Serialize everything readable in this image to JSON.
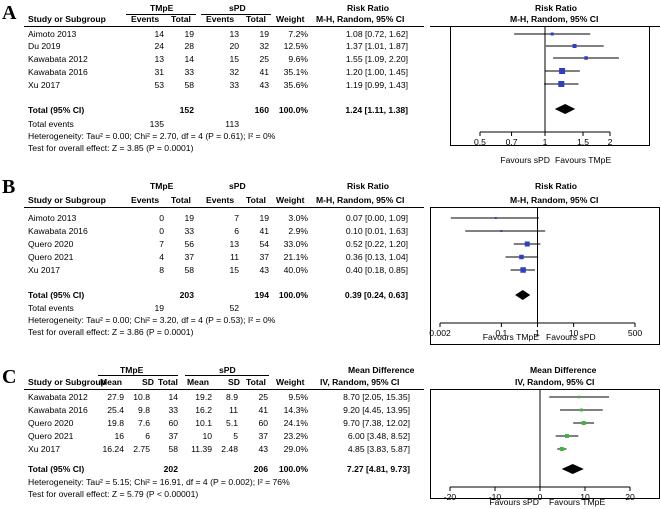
{
  "panels": [
    {
      "letter": "A",
      "group1": "TMpE",
      "group2": "sPD",
      "col_study": "Study or Subgroup",
      "col_events1": "Events",
      "col_total1": "Total",
      "col_events2": "Events",
      "col_total2": "Total",
      "col_weight": "Weight",
      "effect_title": "Risk Ratio",
      "effect_method": "M-H, Random, 95% CI",
      "plot_title": "Risk Ratio",
      "plot_method": "M-H, Random, 95% CI",
      "rows": [
        {
          "study": "Aimoto 2013",
          "e1": "14",
          "t1": "19",
          "e2": "13",
          "t2": "19",
          "weight": "7.2%",
          "effect": "1.08 [0.72, 1.62]"
        },
        {
          "study": "Du 2019",
          "e1": "24",
          "t1": "28",
          "e2": "20",
          "t2": "32",
          "weight": "12.5%",
          "effect": "1.37 [1.01, 1.87]"
        },
        {
          "study": "Kawabata 2012",
          "e1": "13",
          "t1": "14",
          "e2": "15",
          "t2": "25",
          "weight": "9.6%",
          "effect": "1.55 [1.09, 2.20]"
        },
        {
          "study": "Kawabata 2016",
          "e1": "31",
          "t1": "33",
          "e2": "32",
          "t2": "41",
          "weight": "35.1%",
          "effect": "1.20 [1.00, 1.45]"
        },
        {
          "study": "Xu 2017",
          "e1": "53",
          "t1": "58",
          "e2": "33",
          "t2": "43",
          "weight": "35.6%",
          "effect": "1.19 [0.99, 1.43]"
        }
      ],
      "total_label": "Total (95% CI)",
      "total_t1": "152",
      "total_t2": "160",
      "total_weight": "100.0%",
      "total_effect": "1.24 [1.11, 1.38]",
      "events_label": "Total events",
      "events1": "135",
      "events2": "113",
      "heterogeneity": "Heterogeneity: Tau² = 0.00; Chi² = 2.70, df = 4 (P = 0.61); I² = 0%",
      "overall": "Test for overall effect: Z = 3.85 (P = 0.0001)",
      "favours_left": "Favours sPD",
      "favours_right": "Favours TMpE"
    },
    {
      "letter": "B",
      "group1": "TMpE",
      "group2": "sPD",
      "col_study": "Study or Subgroup",
      "col_events1": "Events",
      "col_total1": "Total",
      "col_events2": "Events",
      "col_total2": "Total",
      "col_weight": "Weight",
      "effect_title": "Risk Ratio",
      "effect_method": "M-H, Random, 95% CI",
      "plot_title": "Risk Ratio",
      "plot_method": "M-H, Random, 95% CI",
      "rows": [
        {
          "study": "Aimoto 2013",
          "e1": "0",
          "t1": "19",
          "e2": "7",
          "t2": "19",
          "weight": "3.0%",
          "effect": "0.07 [0.00, 1.09]"
        },
        {
          "study": "Kawabata 2016",
          "e1": "0",
          "t1": "33",
          "e2": "6",
          "t2": "41",
          "weight": "2.9%",
          "effect": "0.10 [0.01, 1.63]"
        },
        {
          "study": "Quero 2020",
          "e1": "7",
          "t1": "56",
          "e2": "13",
          "t2": "54",
          "weight": "33.0%",
          "effect": "0.52 [0.22, 1.20]"
        },
        {
          "study": "Quero 2021",
          "e1": "4",
          "t1": "37",
          "e2": "11",
          "t2": "37",
          "weight": "21.1%",
          "effect": "0.36 [0.13, 1.04]"
        },
        {
          "study": "Xu 2017",
          "e1": "8",
          "t1": "58",
          "e2": "15",
          "t2": "43",
          "weight": "40.0%",
          "effect": "0.40 [0.18, 0.85]"
        }
      ],
      "total_label": "Total (95% CI)",
      "total_t1": "203",
      "total_t2": "194",
      "total_weight": "100.0%",
      "total_effect": "0.39 [0.24, 0.63]",
      "events_label": "Total events",
      "events1": "19",
      "events2": "52",
      "heterogeneity": "Heterogeneity: Tau² = 0.00; Chi² = 3.20, df = 4 (P = 0.53); I² = 0%",
      "overall": "Test for overall effect: Z = 3.86 (P = 0.0001)",
      "favours_left": "Favours TMpE",
      "favours_right": "Favours sPD"
    },
    {
      "letter": "C",
      "group1": "TMpE",
      "group2": "sPD",
      "col_study": "Study or Subgroup",
      "col_mean1": "Mean",
      "col_sd1": "SD",
      "col_total1": "Total",
      "col_mean2": "Mean",
      "col_sd2": "SD",
      "col_total2": "Total",
      "col_weight": "Weight",
      "effect_title": "Mean Difference",
      "effect_method": "IV, Random, 95% CI",
      "plot_title": "Mean Difference",
      "plot_method": "IV, Random, 95% CI",
      "rows": [
        {
          "study": "Kawabata 2012",
          "m1": "27.9",
          "sd1": "10.8",
          "t1": "14",
          "m2": "19.2",
          "sd2": "8.9",
          "t2": "25",
          "weight": "9.5%",
          "effect": "8.70 [2.05, 15.35]"
        },
        {
          "study": "Kawabata 2016",
          "m1": "25.4",
          "sd1": "9.8",
          "t1": "33",
          "m2": "16.2",
          "sd2": "11",
          "t2": "41",
          "weight": "14.3%",
          "effect": "9.20 [4.45, 13.95]"
        },
        {
          "study": "Quero 2020",
          "m1": "19.8",
          "sd1": "7.6",
          "t1": "60",
          "m2": "10.1",
          "sd2": "5.1",
          "t2": "60",
          "weight": "24.1%",
          "effect": "9.70 [7.38, 12.02]"
        },
        {
          "study": "Quero 2021",
          "m1": "16",
          "sd1": "6",
          "t1": "37",
          "m2": "10",
          "sd2": "5",
          "t2": "37",
          "weight": "23.2%",
          "effect": "6.00 [3.48, 8.52]"
        },
        {
          "study": "Xu 2017",
          "m1": "16.24",
          "sd1": "2.75",
          "t1": "58",
          "m2": "11.39",
          "sd2": "2.48",
          "t2": "43",
          "weight": "29.0%",
          "effect": "4.85 [3.83, 5.87]"
        }
      ],
      "total_label": "Total (95% CI)",
      "total_t1": "202",
      "total_t2": "206",
      "total_weight": "100.0%",
      "total_effect": "7.27 [4.81, 9.73]",
      "heterogeneity": "Heterogeneity: Tau² = 5.15; Chi² = 16.91, df = 4 (P = 0.002); I² = 76%",
      "overall": "Test for overall effect: Z = 5.79 (P < 0.00001)",
      "favours_left": "Favours sPD",
      "favours_right": "Favours TMpE"
    }
  ],
  "chart_data": [
    {
      "type": "forest",
      "panel": "A",
      "scale": "log",
      "xlim": [
        0.5,
        2
      ],
      "tick_values": [
        0.5,
        0.7,
        1,
        1.5,
        2
      ],
      "tick_labels": [
        "0.5",
        "0.7",
        "1",
        "1.5",
        "2"
      ],
      "reference_line": 1,
      "marker_color": "#2f3fc4",
      "studies": [
        {
          "name": "Aimoto 2013",
          "estimate": 1.08,
          "lower": 0.72,
          "upper": 1.62,
          "weight": 7.2
        },
        {
          "name": "Du 2019",
          "estimate": 1.37,
          "lower": 1.01,
          "upper": 1.87,
          "weight": 12.5
        },
        {
          "name": "Kawabata 2012",
          "estimate": 1.55,
          "lower": 1.09,
          "upper": 2.2,
          "weight": 9.6
        },
        {
          "name": "Kawabata 2016",
          "estimate": 1.2,
          "lower": 1.0,
          "upper": 1.45,
          "weight": 35.1
        },
        {
          "name": "Xu 2017",
          "estimate": 1.19,
          "lower": 0.99,
          "upper": 1.43,
          "weight": 35.6
        }
      ],
      "pooled": {
        "estimate": 1.24,
        "lower": 1.11,
        "upper": 1.38
      }
    },
    {
      "type": "forest",
      "panel": "B",
      "scale": "log",
      "xlim": [
        0.002,
        500
      ],
      "tick_values": [
        0.002,
        0.1,
        1,
        10,
        500
      ],
      "tick_labels": [
        "0.002",
        "0.1",
        "1",
        "10",
        "500"
      ],
      "reference_line": 1,
      "marker_color": "#2f3fc4",
      "studies": [
        {
          "name": "Aimoto 2013",
          "estimate": 0.07,
          "lower": 0.004,
          "upper": 1.09,
          "weight": 3.0
        },
        {
          "name": "Kawabata 2016",
          "estimate": 0.1,
          "lower": 0.01,
          "upper": 1.63,
          "weight": 2.9
        },
        {
          "name": "Quero 2020",
          "estimate": 0.52,
          "lower": 0.22,
          "upper": 1.2,
          "weight": 33.0
        },
        {
          "name": "Quero 2021",
          "estimate": 0.36,
          "lower": 0.13,
          "upper": 1.04,
          "weight": 21.1
        },
        {
          "name": "Xu 2017",
          "estimate": 0.4,
          "lower": 0.18,
          "upper": 0.85,
          "weight": 40.0
        }
      ],
      "pooled": {
        "estimate": 0.39,
        "lower": 0.24,
        "upper": 0.63
      }
    },
    {
      "type": "forest",
      "panel": "C",
      "scale": "linear",
      "xlim": [
        -20,
        20
      ],
      "tick_values": [
        -20,
        -10,
        0,
        10,
        20
      ],
      "tick_labels": [
        "-20",
        "-10",
        "0",
        "10",
        "20"
      ],
      "reference_line": 0,
      "marker_color": "#3cb83c",
      "studies": [
        {
          "name": "Kawabata 2012",
          "estimate": 8.7,
          "lower": 2.05,
          "upper": 15.35,
          "weight": 9.5
        },
        {
          "name": "Kawabata 2016",
          "estimate": 9.2,
          "lower": 4.45,
          "upper": 13.95,
          "weight": 14.3
        },
        {
          "name": "Quero 2020",
          "estimate": 9.7,
          "lower": 7.38,
          "upper": 12.02,
          "weight": 24.1
        },
        {
          "name": "Quero 2021",
          "estimate": 6.0,
          "lower": 3.48,
          "upper": 8.52,
          "weight": 23.2
        },
        {
          "name": "Xu 2017",
          "estimate": 4.85,
          "lower": 3.83,
          "upper": 5.87,
          "weight": 29.0
        }
      ],
      "pooled": {
        "estimate": 7.27,
        "lower": 4.81,
        "upper": 9.73
      }
    }
  ]
}
